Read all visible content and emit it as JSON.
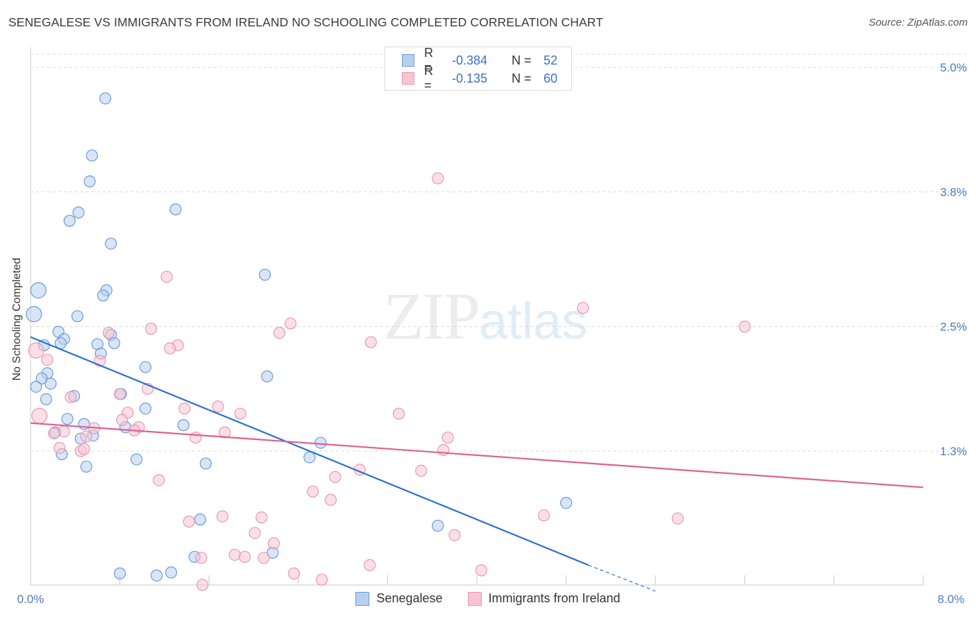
{
  "header": {
    "title": "SENEGALESE VS IMMIGRANTS FROM IRELAND NO SCHOOLING COMPLETED CORRELATION CHART",
    "source": "Source: ZipAtlas.com"
  },
  "watermark": {
    "zip": "ZIP",
    "atlas": "atlas"
  },
  "legend_top": {
    "rows": [
      {
        "r_label": "R =",
        "r_value": "-0.384",
        "n_label": "N =",
        "n_value": "52"
      },
      {
        "r_label": "R =",
        "r_value": "-0.135",
        "n_label": "N =",
        "n_value": "60"
      }
    ]
  },
  "legend_bottom": {
    "items": [
      {
        "label": "Senegalese"
      },
      {
        "label": "Immigrants from Ireland"
      }
    ]
  },
  "chart_data": {
    "type": "scatter",
    "title": "SENEGALESE VS IMMIGRANTS FROM IRELAND NO SCHOOLING COMPLETED CORRELATION CHART",
    "xlabel": "",
    "ylabel": "No Schooling Completed",
    "xlim": [
      0,
      8
    ],
    "ylim": [
      0,
      5.15
    ],
    "x_tick_labels": [
      "0.0%",
      "8.0%"
    ],
    "y_ticks": [
      1.3,
      2.5,
      3.8,
      5.0
    ],
    "y_tick_labels": [
      "1.3%",
      "2.5%",
      "3.8%",
      "5.0%"
    ],
    "grid": true,
    "legend_position": "top-center",
    "colors": {
      "senegalese_fill": "#b8d0f0",
      "senegalese_stroke": "#6a9ad8",
      "senegalese_line": "#2a6fd0",
      "ireland_fill": "#f8c4d4",
      "ireland_stroke": "#e898b4",
      "ireland_line": "#e06090",
      "grid": "#d8d8d8",
      "tick_text": "#4a7ac8"
    },
    "series": [
      {
        "name": "Senegalese",
        "trend": {
          "x0": 0.0,
          "y0": 2.4,
          "x1": 5.0,
          "y1": 0.2,
          "dash_to_x": 5.6,
          "dash_to_y": -0.05
        },
        "points": [
          [
            0.67,
            4.7
          ],
          [
            0.55,
            4.15
          ],
          [
            0.53,
            3.9
          ],
          [
            0.43,
            3.6
          ],
          [
            0.35,
            3.52
          ],
          [
            1.3,
            3.63
          ],
          [
            0.72,
            3.3
          ],
          [
            2.1,
            3.0
          ],
          [
            0.07,
            2.85
          ],
          [
            0.68,
            2.85
          ],
          [
            0.65,
            2.8
          ],
          [
            0.03,
            2.62
          ],
          [
            0.42,
            2.6
          ],
          [
            0.25,
            2.45
          ],
          [
            0.72,
            2.42
          ],
          [
            0.75,
            2.34
          ],
          [
            0.12,
            2.32
          ],
          [
            0.3,
            2.38
          ],
          [
            0.27,
            2.34
          ],
          [
            0.6,
            2.33
          ],
          [
            0.63,
            2.24
          ],
          [
            1.03,
            2.11
          ],
          [
            0.15,
            2.05
          ],
          [
            0.1,
            2.0
          ],
          [
            2.12,
            2.02
          ],
          [
            0.18,
            1.95
          ],
          [
            0.05,
            1.92
          ],
          [
            0.14,
            1.8
          ],
          [
            0.81,
            1.85
          ],
          [
            0.39,
            1.83
          ],
          [
            1.03,
            1.71
          ],
          [
            0.33,
            1.61
          ],
          [
            0.48,
            1.56
          ],
          [
            0.85,
            1.53
          ],
          [
            1.37,
            1.55
          ],
          [
            0.22,
            1.48
          ],
          [
            0.56,
            1.45
          ],
          [
            0.45,
            1.42
          ],
          [
            2.6,
            1.38
          ],
          [
            0.28,
            1.27
          ],
          [
            0.95,
            1.22
          ],
          [
            2.5,
            1.24
          ],
          [
            1.57,
            1.18
          ],
          [
            0.5,
            1.15
          ],
          [
            4.8,
            0.8
          ],
          [
            1.52,
            0.64
          ],
          [
            3.65,
            0.58
          ],
          [
            1.47,
            0.28
          ],
          [
            2.17,
            0.32
          ],
          [
            1.26,
            0.13
          ],
          [
            0.8,
            0.12
          ],
          [
            1.13,
            0.1
          ]
        ]
      },
      {
        "name": "Immigrants from Ireland",
        "trend": {
          "x0": 0.0,
          "y0": 1.57,
          "x1": 8.0,
          "y1": 0.95
        },
        "points": [
          [
            3.65,
            3.93
          ],
          [
            1.22,
            2.98
          ],
          [
            4.95,
            2.68
          ],
          [
            0.05,
            2.27
          ],
          [
            6.4,
            2.5
          ],
          [
            2.33,
            2.53
          ],
          [
            1.08,
            2.48
          ],
          [
            2.23,
            2.44
          ],
          [
            0.7,
            2.44
          ],
          [
            3.05,
            2.35
          ],
          [
            1.32,
            2.32
          ],
          [
            1.25,
            2.29
          ],
          [
            0.15,
            2.18
          ],
          [
            0.62,
            2.17
          ],
          [
            1.05,
            1.9
          ],
          [
            0.8,
            1.85
          ],
          [
            0.36,
            1.82
          ],
          [
            1.68,
            1.73
          ],
          [
            1.38,
            1.71
          ],
          [
            0.87,
            1.67
          ],
          [
            1.88,
            1.66
          ],
          [
            3.3,
            1.66
          ],
          [
            0.82,
            1.6
          ],
          [
            0.08,
            1.64
          ],
          [
            0.97,
            1.53
          ],
          [
            0.57,
            1.52
          ],
          [
            0.93,
            1.5
          ],
          [
            0.3,
            1.49
          ],
          [
            0.21,
            1.47
          ],
          [
            1.74,
            1.48
          ],
          [
            0.5,
            1.44
          ],
          [
            1.48,
            1.43
          ],
          [
            3.74,
            1.43
          ],
          [
            0.26,
            1.33
          ],
          [
            0.45,
            1.3
          ],
          [
            0.48,
            1.32
          ],
          [
            3.7,
            1.31
          ],
          [
            2.95,
            1.12
          ],
          [
            3.5,
            1.11
          ],
          [
            2.73,
            1.05
          ],
          [
            1.15,
            1.02
          ],
          [
            2.53,
            0.91
          ],
          [
            2.69,
            0.83
          ],
          [
            5.8,
            0.65
          ],
          [
            4.6,
            0.68
          ],
          [
            1.72,
            0.67
          ],
          [
            2.07,
            0.66
          ],
          [
            1.42,
            0.62
          ],
          [
            2.01,
            0.51
          ],
          [
            3.8,
            0.49
          ],
          [
            2.18,
            0.41
          ],
          [
            1.83,
            0.3
          ],
          [
            1.92,
            0.28
          ],
          [
            2.09,
            0.27
          ],
          [
            1.53,
            0.27
          ],
          [
            3.04,
            0.2
          ],
          [
            4.04,
            0.15
          ],
          [
            2.36,
            0.12
          ],
          [
            2.61,
            0.06
          ],
          [
            1.54,
            0.01
          ]
        ]
      }
    ]
  }
}
